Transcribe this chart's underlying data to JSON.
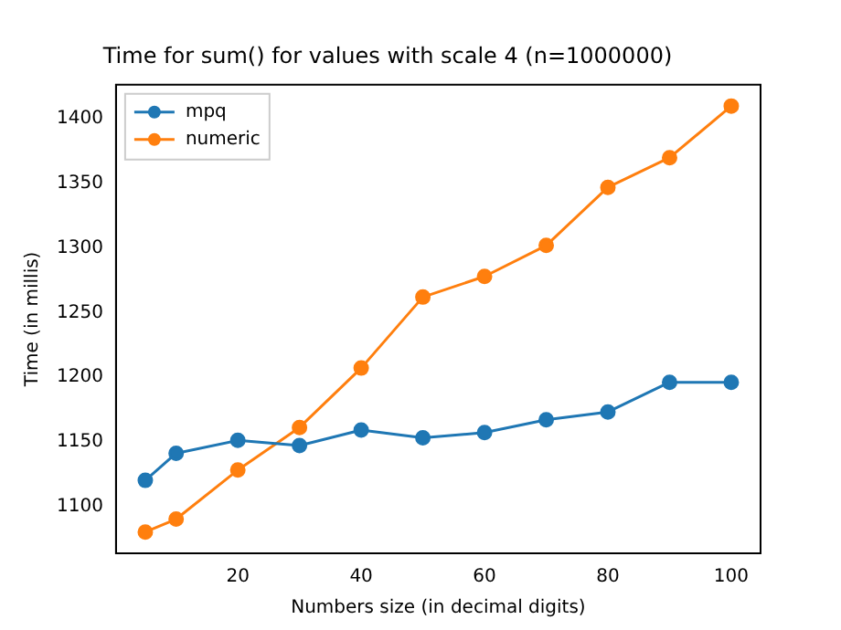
{
  "chart_data": {
    "type": "line",
    "title": "Time for sum() for values with scale 4 (n=1000000)",
    "xlabel": "Numbers size (in decimal digits)",
    "ylabel": "Time (in millis)",
    "x": [
      5,
      10,
      20,
      30,
      40,
      50,
      60,
      70,
      80,
      90,
      100
    ],
    "series": [
      {
        "name": "mpq",
        "color": "#1f77b4",
        "values": [
          1120,
          1141,
          1151,
          1147,
          1159,
          1153,
          1157,
          1167,
          1173,
          1196,
          1196
        ]
      },
      {
        "name": "numeric",
        "color": "#ff7f0e",
        "values": [
          1080,
          1090,
          1128,
          1161,
          1207,
          1262,
          1278,
          1302,
          1347,
          1370,
          1410
        ]
      }
    ],
    "xlim": [
      0.25,
      104.75
    ],
    "xticks": [
      20,
      40,
      60,
      80,
      100
    ],
    "ylim": [
      1063.5,
      1426.5
    ],
    "yticks": [
      1100,
      1150,
      1200,
      1250,
      1300,
      1350,
      1400
    ],
    "marker": "circle",
    "line_style": "solid",
    "legend": "top left",
    "grid": false
  }
}
